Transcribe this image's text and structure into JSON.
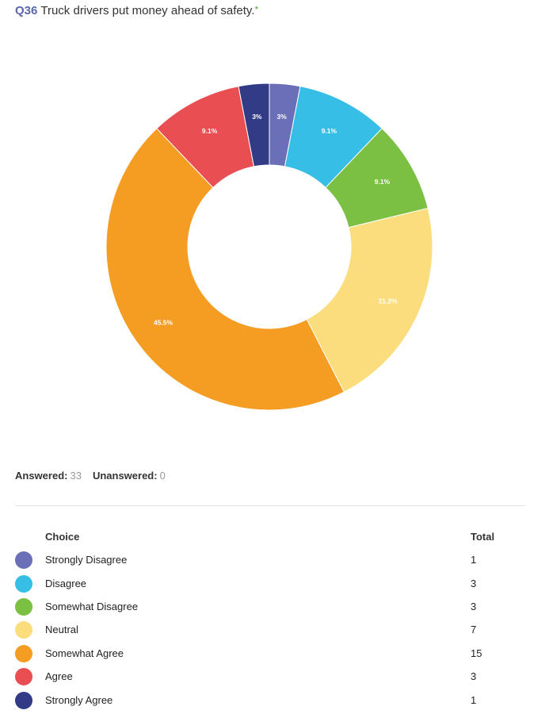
{
  "question": {
    "number": "Q36",
    "text": "Truck drivers put money ahead of safety.",
    "required_mark": "*"
  },
  "summary": {
    "answered_label": "Answered:",
    "answered": "33",
    "unanswered_label": "Unanswered:",
    "unanswered": "0"
  },
  "table": {
    "choice_header": "Choice",
    "total_header": "Total"
  },
  "chart_data": {
    "type": "pie",
    "donut": true,
    "categories": [
      "Strongly Disagree",
      "Disagree",
      "Somewhat Disagree",
      "Neutral",
      "Somewhat Agree",
      "Agree",
      "Strongly Agree"
    ],
    "values": [
      1,
      3,
      3,
      7,
      15,
      3,
      1
    ],
    "data_labels": [
      "3%",
      "9.1%",
      "9.1%",
      "21.2%",
      "45.5%",
      "9.1%",
      "3%"
    ],
    "colors": [
      "#6a6fb8",
      "#36bee6",
      "#7cc043",
      "#fbdd7e",
      "#f59d23",
      "#e94e52",
      "#313b86"
    ]
  }
}
